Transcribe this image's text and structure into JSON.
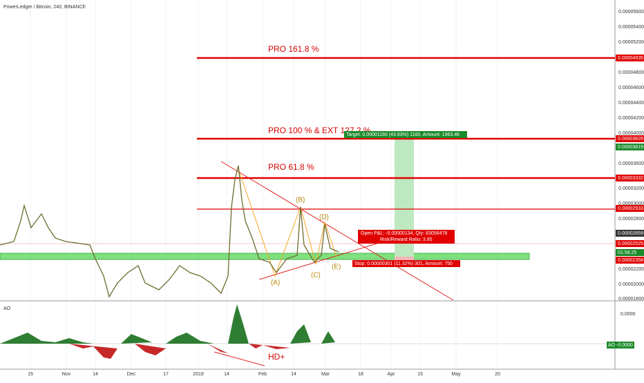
{
  "header": {
    "title": "PowerLedger / Bitcoin, 240, BINANCE"
  },
  "indicator": {
    "name": "AO",
    "axis_label": "0.0000",
    "value_label": "AO -0.0000"
  },
  "price_axis": [
    "0.00005600",
    "0.00005400",
    "0.00005200",
    "0.00004800",
    "0.00004600",
    "0.00004400",
    "0.00004200",
    "0.00004000",
    "0.00003600",
    "0.00003200",
    "0.00003000",
    "0.00002800",
    "0.00002200",
    "0.00002000",
    "0.00001800"
  ],
  "price_labels": [
    {
      "text": "0.00004935",
      "kind": "red"
    },
    {
      "text": "0.00003826",
      "kind": "red"
    },
    {
      "text": "0.00003819",
      "kind": "green"
    },
    {
      "text": "0.00003332",
      "kind": "red"
    },
    {
      "text": "0.00002933",
      "kind": "red"
    },
    {
      "text": "0.00002659",
      "kind": "dark"
    },
    {
      "text": "0.00002525",
      "kind": "red"
    },
    {
      "text": "01:58:25",
      "kind": "green"
    },
    {
      "text": "0.00002358",
      "kind": "red"
    }
  ],
  "time_axis": [
    "15",
    "Nov",
    "14",
    "Dec",
    "17",
    "2019",
    "14",
    "Feb",
    "14",
    "Mar",
    "18",
    "Apr",
    "15",
    "May",
    "20"
  ],
  "annotations": {
    "pro_161": "PRO 161.8 %",
    "pro_100": "PRO 100 % & EXT 127.2 %",
    "pro_61": "PRO 61.8 %",
    "target": "Target: 0.00001160 (43.63%) 1160, Amount: 1963.46",
    "open_pl": "Open P&L: -0.00000134, Qty: 83056478",
    "risk_reward": "Risk/Reward Ratio: 3.85",
    "stop": "Stop: 0.00000301 (11.32%) 301, Amount: 750",
    "wave_a": "(A)",
    "wave_b": "(B)",
    "wave_c": "(C)",
    "wave_d": "(D)",
    "wave_e": "(E)",
    "divergence": "HD+"
  }
}
